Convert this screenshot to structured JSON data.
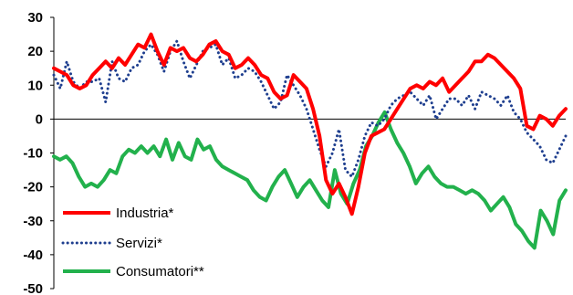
{
  "chart_data": {
    "type": "line",
    "ylim": [
      -50,
      30
    ],
    "yticks": [
      30,
      20,
      10,
      0,
      -10,
      -20,
      -30,
      -40,
      -50
    ],
    "grid": false,
    "legend_position": "bottom-left",
    "series": [
      {
        "name": "Industria*",
        "color": "#ff0000",
        "style": "solid",
        "values": [
          15,
          14,
          13,
          10,
          9,
          10,
          13,
          15,
          17,
          15,
          18,
          16,
          19,
          22,
          21,
          25,
          20,
          16,
          21,
          20,
          21,
          18,
          17,
          19,
          22,
          23,
          20,
          19,
          15,
          16,
          18,
          16,
          13,
          12,
          8,
          6,
          7,
          13,
          11,
          9,
          3,
          -5,
          -18,
          -22,
          -19,
          -23,
          -28,
          -20,
          -10,
          -5,
          -4,
          -3,
          0,
          3,
          6,
          9,
          10,
          9,
          11,
          10,
          12,
          8,
          10,
          12,
          14,
          17,
          17,
          19,
          18,
          16,
          14,
          12,
          9,
          -2,
          -3,
          1,
          0,
          -2,
          1,
          3
        ]
      },
      {
        "name": "Servizi*",
        "color": "#1f3f8f",
        "style": "dotted",
        "values": [
          13,
          9,
          17,
          11,
          9,
          11,
          11,
          12,
          5,
          17,
          12,
          11,
          15,
          16,
          20,
          22,
          19,
          14,
          20,
          23,
          17,
          12,
          16,
          20,
          21,
          22,
          16,
          18,
          12,
          13,
          15,
          14,
          11,
          7,
          3,
          5,
          13,
          10,
          7,
          3,
          -3,
          -9,
          -14,
          -10,
          -3,
          -15,
          -17,
          -12,
          -5,
          -1,
          -2,
          0,
          4,
          6,
          7,
          8,
          6,
          4,
          7,
          0,
          3,
          6,
          6,
          4,
          7,
          3,
          8,
          7,
          6,
          4,
          7,
          2,
          0,
          -4,
          -6,
          -8,
          -12,
          -13,
          -9,
          -5
        ]
      },
      {
        "name": "Consumatori**",
        "color": "#22b14c",
        "style": "solid",
        "values": [
          -11,
          -12,
          -11,
          -13,
          -17,
          -20,
          -19,
          -20,
          -18,
          -15,
          -16,
          -11,
          -9,
          -10,
          -8,
          -10,
          -8,
          -11,
          -6,
          -12,
          -7,
          -11,
          -12,
          -6,
          -9,
          -8,
          -12,
          -14,
          -15,
          -16,
          -17,
          -18,
          -21,
          -23,
          -24,
          -20,
          -17,
          -15,
          -19,
          -23,
          -20,
          -18,
          -21,
          -24,
          -26,
          -15,
          -22,
          -25,
          -19,
          -15,
          -8,
          -5,
          -1,
          2,
          -3,
          -7,
          -10,
          -14,
          -19,
          -16,
          -14,
          -17,
          -19,
          -20,
          -20,
          -21,
          -22,
          -21,
          -22,
          -24,
          -27,
          -25,
          -23,
          -26,
          -31,
          -33,
          -36,
          -38,
          -27,
          -30,
          -34,
          -24,
          -21
        ]
      }
    ]
  }
}
